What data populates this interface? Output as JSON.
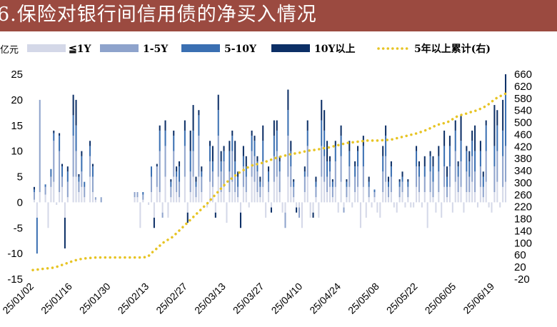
{
  "title": "6.保险对银行间信用债的净买入情况",
  "chart_data": {
    "type": "bar",
    "stacked": true,
    "unit_left": "亿元",
    "legend": [
      {
        "name": "≦1Y",
        "color": "#d4d8e8"
      },
      {
        "name": "1-5Y",
        "color": "#8ea3cc"
      },
      {
        "name": "5-10Y",
        "color": "#3a6fb2"
      },
      {
        "name": "10Y以上",
        "color": "#0c2f66"
      },
      {
        "name": "5年以上累计(右)",
        "color": "#e7c424"
      }
    ],
    "y_left": {
      "min": -15,
      "max": 25,
      "ticks": [
        -15,
        -10,
        -5,
        0,
        5,
        10,
        15,
        20,
        25
      ]
    },
    "y_right": {
      "min": -20,
      "max": 660,
      "ticks": [
        -20,
        20,
        60,
        100,
        140,
        180,
        220,
        260,
        300,
        340,
        380,
        420,
        460,
        500,
        540,
        580,
        620,
        660
      ]
    },
    "x_ticks": [
      "25/01/02",
      "25/01/16",
      "25/01/30",
      "25/02/13",
      "25/02/27",
      "25/03/13",
      "25/03/27",
      "25/04/10",
      "25/04/24",
      "25/05/08",
      "25/05/22",
      "25/06/05",
      "25/06/19"
    ],
    "bars": [
      [
        0.5,
        1.5,
        0.5,
        0.5
      ],
      [
        -3,
        0,
        -7,
        0
      ],
      [
        2,
        18,
        0,
        0
      ],
      [
        0,
        0,
        0,
        0
      ],
      [
        1.5,
        1.5,
        0.5,
        0
      ],
      [
        -5,
        0,
        0,
        0
      ],
      [
        3,
        2,
        1.5,
        0
      ],
      [
        4,
        8,
        1.5,
        0.5
      ],
      [
        -0.5,
        0,
        0,
        0
      ],
      [
        2,
        8,
        3,
        0.5
      ],
      [
        3,
        2,
        2,
        0.5
      ],
      [
        -3,
        0,
        0,
        -6
      ],
      [
        1,
        3,
        2,
        1
      ],
      [
        0,
        0,
        0,
        0
      ],
      [
        5,
        8,
        4,
        4
      ],
      [
        5,
        5,
        5,
        5
      ],
      [
        2,
        2,
        1,
        0.5
      ],
      [
        3,
        3,
        3,
        1
      ],
      [
        1,
        2,
        1,
        0
      ],
      [
        0,
        0,
        0,
        0
      ],
      [
        5,
        4,
        2,
        1
      ],
      [
        2,
        3,
        2,
        0.5
      ],
      [
        0.5,
        0.5,
        0,
        0
      ],
      [
        0,
        0,
        0,
        0
      ],
      [
        0,
        1,
        0,
        0
      ],
      [
        0,
        0,
        0,
        0
      ],
      [
        0,
        0,
        0,
        0
      ],
      [
        0,
        0,
        0,
        0
      ],
      [
        0,
        0,
        0,
        0
      ],
      [
        0,
        0,
        0,
        0
      ],
      [
        0,
        0,
        0,
        0
      ],
      [
        0,
        0,
        0,
        0
      ],
      [
        0,
        0,
        0,
        0
      ],
      [
        0,
        0,
        0,
        0
      ],
      [
        0,
        0,
        0,
        0
      ],
      [
        0,
        0,
        0,
        0
      ],
      [
        1,
        1,
        0,
        0
      ],
      [
        1,
        1,
        0,
        0
      ],
      [
        -5,
        0,
        0,
        0
      ],
      [
        0.5,
        1,
        0.5,
        0
      ],
      [
        0,
        0,
        0,
        0
      ],
      [
        -0.5,
        0,
        0,
        0
      ],
      [
        2,
        3,
        2,
        0
      ],
      [
        -3,
        0,
        0,
        -2
      ],
      [
        3,
        4,
        0,
        0.5
      ],
      [
        2,
        8,
        4,
        1
      ],
      [
        -2,
        -1,
        0,
        0
      ],
      [
        5,
        6,
        3,
        2
      ],
      [
        -3,
        0,
        0,
        0
      ],
      [
        1,
        2,
        1,
        0.5
      ],
      [
        5,
        5,
        3,
        1
      ],
      [
        2,
        3,
        1,
        1
      ],
      [
        1,
        3,
        3,
        1
      ],
      [
        0,
        0,
        0,
        0
      ],
      [
        5,
        6,
        3,
        2
      ],
      [
        -2,
        0,
        0,
        -2
      ],
      [
        2,
        4,
        4,
        4
      ],
      [
        5,
        5,
        4,
        5
      ],
      [
        1,
        2,
        1,
        1
      ],
      [
        5,
        8,
        4,
        1
      ],
      [
        2,
        3,
        1,
        1
      ],
      [
        0,
        0,
        0,
        0
      ],
      [
        -1,
        0,
        0,
        0
      ],
      [
        4,
        4,
        3,
        1
      ],
      [
        3,
        3,
        2,
        3
      ],
      [
        -2,
        0,
        0,
        -1
      ],
      [
        5,
        8,
        5,
        3
      ],
      [
        2,
        4,
        2,
        2
      ],
      [
        3,
        5,
        2,
        1
      ],
      [
        -4,
        0,
        0,
        0
      ],
      [
        2,
        4,
        4,
        2
      ],
      [
        4,
        6,
        3,
        1
      ],
      [
        2,
        3,
        3,
        4
      ],
      [
        1,
        2,
        2,
        1
      ],
      [
        -2,
        0,
        0,
        -3
      ],
      [
        3,
        4,
        2,
        2
      ],
      [
        2,
        3,
        2,
        2
      ],
      [
        -1,
        0,
        0,
        0
      ],
      [
        5,
        5,
        3,
        1
      ],
      [
        4,
        5,
        3,
        1
      ],
      [
        2,
        4,
        2,
        1
      ],
      [
        1,
        2,
        1,
        1
      ],
      [
        3,
        5,
        4,
        3
      ],
      [
        -3,
        0,
        0,
        0
      ],
      [
        2,
        2,
        2,
        1
      ],
      [
        -1,
        0,
        0,
        -1
      ],
      [
        4,
        5,
        4,
        3
      ],
      [
        5,
        5,
        4,
        2
      ],
      [
        2,
        4,
        2,
        1
      ],
      [
        -2,
        0,
        0,
        0
      ],
      [
        -2,
        -3,
        0,
        0
      ],
      [
        5,
        8,
        5,
        4
      ],
      [
        3,
        4,
        3,
        2
      ],
      [
        1,
        2,
        1,
        0.5
      ],
      [
        -1,
        0,
        0,
        -1
      ],
      [
        -1,
        -2,
        0,
        0
      ],
      [
        -5,
        0,
        0,
        0
      ],
      [
        2,
        3,
        1,
        1
      ],
      [
        5,
        6,
        3,
        2
      ],
      [
        -3,
        0,
        0,
        0
      ],
      [
        -2,
        0,
        0,
        -1
      ],
      [
        1,
        2,
        1,
        1
      ],
      [
        -3,
        0,
        0,
        0
      ],
      [
        5,
        6,
        5,
        4
      ],
      [
        4,
        5,
        5,
        4
      ],
      [
        2,
        3,
        3,
        4
      ],
      [
        3,
        3,
        2,
        1
      ],
      [
        1,
        2,
        1,
        0.5
      ],
      [
        3,
        5,
        3,
        1
      ],
      [
        -2,
        0,
        0,
        0
      ],
      [
        4,
        5,
        4,
        2
      ],
      [
        -1,
        -1,
        0,
        0
      ],
      [
        1,
        2,
        1,
        0.5
      ],
      [
        3,
        4,
        3,
        2
      ],
      [
        -1,
        0,
        0,
        0
      ],
      [
        2,
        3,
        2,
        1
      ],
      [
        3,
        4,
        3,
        1
      ],
      [
        -5,
        0,
        0,
        0
      ],
      [
        3,
        4,
        4,
        2
      ],
      [
        -3,
        0,
        0,
        0
      ],
      [
        1,
        2,
        1,
        1
      ],
      [
        -1,
        0,
        0,
        0
      ],
      [
        1,
        1,
        0.5,
        0
      ],
      [
        -2,
        0,
        0,
        0
      ],
      [
        -3,
        0,
        0,
        0
      ],
      [
        2,
        4,
        3,
        2
      ],
      [
        4,
        5,
        4,
        2
      ],
      [
        1,
        2,
        1,
        1
      ],
      [
        2,
        3,
        2,
        1
      ],
      [
        -1,
        0,
        0,
        0
      ],
      [
        -2,
        0,
        0,
        0
      ],
      [
        1,
        2,
        1,
        0.5
      ],
      [
        2,
        2,
        1,
        1
      ],
      [
        -1,
        0,
        0,
        0
      ],
      [
        1,
        2,
        1,
        0.5
      ],
      [
        -1,
        0,
        0,
        0
      ],
      [
        -1,
        0,
        0,
        0
      ],
      [
        3,
        4,
        3,
        1
      ],
      [
        2,
        3,
        2,
        1
      ],
      [
        -1,
        0,
        0,
        0
      ],
      [
        2,
        3,
        2,
        2
      ],
      [
        -5,
        0,
        0,
        0
      ],
      [
        2,
        4,
        3,
        1
      ],
      [
        1,
        3,
        3,
        2
      ],
      [
        -2,
        0,
        0,
        0
      ],
      [
        2,
        4,
        3,
        2
      ],
      [
        -3,
        0,
        0,
        0
      ],
      [
        3,
        4,
        4,
        3
      ],
      [
        1,
        2,
        2,
        2
      ],
      [
        3,
        4,
        4,
        2
      ],
      [
        -2,
        0,
        0,
        0
      ],
      [
        4,
        6,
        4,
        2
      ],
      [
        2,
        3,
        2,
        1
      ],
      [
        3,
        5,
        4,
        5
      ],
      [
        -2,
        0,
        0,
        0
      ],
      [
        2,
        4,
        4,
        1
      ],
      [
        2,
        3,
        3,
        2
      ],
      [
        4,
        5,
        3,
        2
      ],
      [
        2,
        4,
        4,
        5
      ],
      [
        -1,
        0,
        0,
        0
      ],
      [
        3,
        4,
        3,
        2
      ],
      [
        1,
        2,
        2,
        1
      ],
      [
        4,
        6,
        5,
        1
      ],
      [
        -1,
        0,
        0,
        0
      ],
      [
        -2,
        0,
        0,
        0
      ],
      [
        2,
        5,
        4,
        8
      ],
      [
        4,
        6,
        5,
        3
      ],
      [
        -1,
        0,
        0,
        0
      ],
      [
        3,
        6,
        5,
        6
      ],
      [
        4,
        7,
        10,
        4
      ]
    ],
    "cumulative": [
      10,
      12,
      14,
      16,
      18,
      22,
      28,
      34,
      40,
      45,
      48,
      50,
      51,
      52,
      52,
      52,
      52,
      52,
      52,
      52,
      52,
      52,
      52,
      54,
      70,
      84,
      100,
      110,
      120,
      136,
      152,
      168,
      184,
      200,
      216,
      232,
      250,
      268,
      286,
      304,
      316,
      330,
      340,
      350,
      358,
      362,
      366,
      372,
      378,
      384,
      388,
      392,
      396,
      398,
      402,
      406,
      408,
      410,
      414,
      416,
      420,
      424,
      428,
      432,
      434,
      436,
      438,
      440,
      440,
      440,
      441,
      442,
      444,
      448,
      452,
      456,
      460,
      464,
      470,
      476,
      484,
      492,
      496,
      500,
      510,
      520,
      526,
      530,
      536,
      540,
      548,
      556,
      570,
      582,
      590,
      598
    ]
  }
}
